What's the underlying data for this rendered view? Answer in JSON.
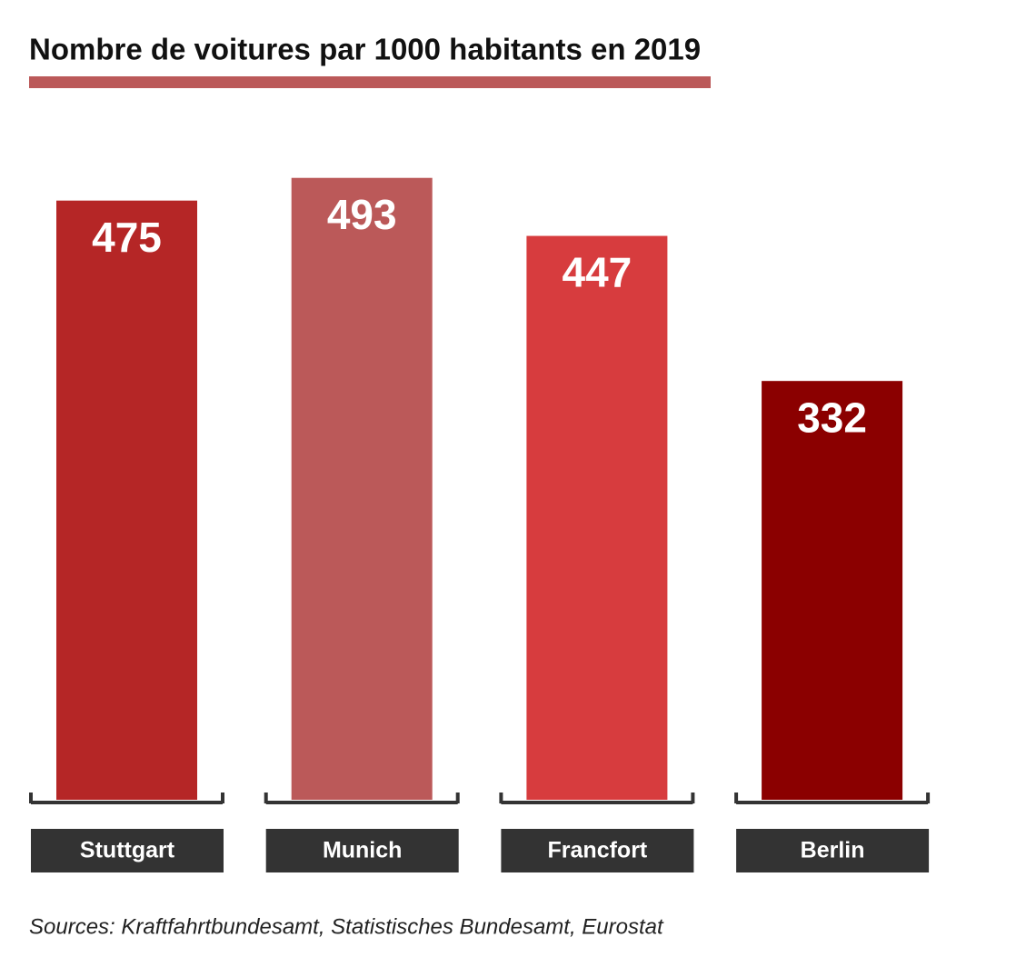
{
  "chart_data": {
    "type": "bar",
    "title": "Nombre de voitures par 1000 habitants en 2019",
    "categories": [
      "Stuttgart",
      "Munich",
      "Francfort",
      "Berlin"
    ],
    "values": [
      475,
      493,
      447,
      332
    ],
    "colors": [
      "#b52626",
      "#bb5959",
      "#d73c3e",
      "#8b0000"
    ],
    "source": "Sources: Kraftfahrtbundesamt, Statistisches Bundesamt, Eurostat"
  }
}
